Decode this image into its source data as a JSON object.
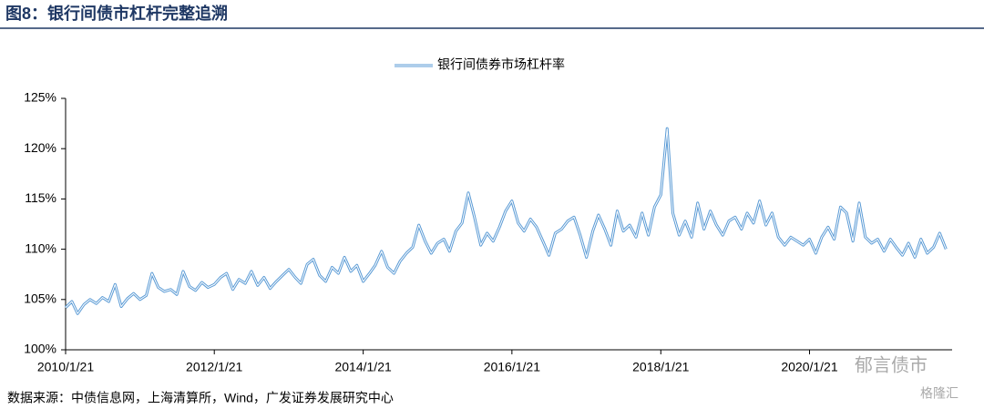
{
  "chart_data": {
    "type": "line",
    "title": "图8：银行间债市杠杆完整追溯",
    "source": "数据来源：中债信息网，上海清算所，Wind，广发证券发展研究中心",
    "watermark": [
      "郁言债市",
      "格隆汇"
    ],
    "x": [
      "2010/1/21",
      "2010/2/21",
      "2010/3/21",
      "2010/4/21",
      "2010/5/21",
      "2010/6/21",
      "2010/7/21",
      "2010/8/21",
      "2010/9/21",
      "2010/10/21",
      "2010/11/21",
      "2010/12/21",
      "2011/1/21",
      "2011/2/21",
      "2011/3/21",
      "2011/4/21",
      "2011/5/21",
      "2011/6/21",
      "2011/7/21",
      "2011/8/21",
      "2011/9/21",
      "2011/10/21",
      "2011/11/21",
      "2011/12/21",
      "2012/1/21",
      "2012/2/21",
      "2012/3/21",
      "2012/4/21",
      "2012/5/21",
      "2012/6/21",
      "2012/7/21",
      "2012/8/21",
      "2012/9/21",
      "2012/10/21",
      "2012/11/21",
      "2012/12/21",
      "2013/1/21",
      "2013/2/21",
      "2013/3/21",
      "2013/4/21",
      "2013/5/21",
      "2013/6/21",
      "2013/7/21",
      "2013/8/21",
      "2013/9/21",
      "2013/10/21",
      "2013/11/21",
      "2013/12/21",
      "2014/1/21",
      "2014/2/21",
      "2014/3/21",
      "2014/4/21",
      "2014/5/21",
      "2014/6/21",
      "2014/7/21",
      "2014/8/21",
      "2014/9/21",
      "2014/10/21",
      "2014/11/21",
      "2014/12/21",
      "2015/1/21",
      "2015/2/21",
      "2015/3/21",
      "2015/4/21",
      "2015/5/21",
      "2015/6/21",
      "2015/7/21",
      "2015/8/21",
      "2015/9/21",
      "2015/10/21",
      "2015/11/21",
      "2015/12/21",
      "2016/1/21",
      "2016/2/21",
      "2016/3/21",
      "2016/4/21",
      "2016/5/21",
      "2016/6/21",
      "2016/7/21",
      "2016/8/21",
      "2016/9/21",
      "2016/10/21",
      "2016/11/21",
      "2016/12/21",
      "2017/1/21",
      "2017/2/21",
      "2017/3/21",
      "2017/4/21",
      "2017/5/21",
      "2017/6/21",
      "2017/7/21",
      "2017/8/21",
      "2017/9/21",
      "2017/10/21",
      "2017/11/21",
      "2017/12/21",
      "2018/1/21",
      "2018/2/21",
      "2018/3/21",
      "2018/4/21",
      "2018/5/21",
      "2018/6/21",
      "2018/7/21",
      "2018/8/21",
      "2018/9/21",
      "2018/10/21",
      "2018/11/21",
      "2018/12/21",
      "2019/1/21",
      "2019/2/21",
      "2019/3/21",
      "2019/4/21",
      "2019/5/21",
      "2019/6/21",
      "2019/7/21",
      "2019/8/21",
      "2019/9/21",
      "2019/10/21",
      "2019/11/21",
      "2019/12/21",
      "2020/1/21",
      "2020/2/21",
      "2020/3/21",
      "2020/4/21",
      "2020/5/21",
      "2020/6/21",
      "2020/7/21",
      "2020/8/21",
      "2020/9/21",
      "2020/10/21",
      "2020/11/21",
      "2020/12/21",
      "2021/1/21",
      "2021/2/21",
      "2021/3/21",
      "2021/4/21",
      "2021/5/21",
      "2021/6/21",
      "2021/7/21",
      "2021/8/21",
      "2021/9/21",
      "2021/10/21",
      "2021/11/21"
    ],
    "series": [
      {
        "name": "银行间债券市场杠杆率",
        "color": "#5b9bd5",
        "values": [
          104.2,
          104.8,
          103.6,
          104.5,
          105.0,
          104.6,
          105.2,
          104.8,
          106.5,
          104.3,
          105.1,
          105.6,
          105.0,
          105.4,
          107.6,
          106.2,
          105.8,
          106.0,
          105.5,
          107.8,
          106.3,
          105.9,
          106.7,
          106.2,
          106.5,
          107.2,
          107.6,
          106.0,
          107.0,
          106.6,
          107.8,
          106.4,
          107.2,
          106.1,
          106.8,
          107.4,
          108.0,
          107.2,
          106.6,
          108.5,
          109.0,
          107.4,
          106.8,
          108.2,
          107.6,
          109.2,
          107.8,
          108.4,
          106.8,
          107.6,
          108.4,
          109.8,
          108.2,
          107.6,
          108.8,
          109.6,
          110.2,
          112.4,
          110.8,
          109.6,
          110.6,
          111.0,
          109.8,
          111.8,
          112.6,
          115.6,
          113.2,
          110.4,
          111.6,
          110.8,
          112.2,
          113.8,
          114.8,
          112.6,
          111.8,
          113.0,
          112.2,
          110.8,
          109.4,
          111.6,
          112.0,
          112.8,
          113.2,
          111.4,
          109.2,
          111.8,
          113.4,
          112.0,
          110.4,
          113.8,
          111.8,
          112.4,
          111.2,
          113.6,
          111.4,
          114.2,
          115.4,
          122.0,
          113.6,
          111.4,
          112.8,
          111.2,
          114.6,
          112.0,
          113.8,
          112.4,
          111.4,
          112.8,
          113.2,
          112.0,
          113.6,
          112.6,
          114.8,
          112.4,
          113.6,
          111.2,
          110.4,
          111.2,
          110.8,
          110.4,
          111.0,
          109.6,
          111.2,
          112.2,
          111.0,
          114.2,
          113.6,
          110.8,
          114.6,
          111.2,
          110.6,
          111.0,
          109.8,
          111.0,
          110.2,
          109.4,
          110.6,
          109.2,
          111.0,
          109.6,
          110.2,
          111.6,
          110.0
        ]
      }
    ],
    "xlim": [
      "2010/1/21",
      "2021/12/21"
    ],
    "xticks": [
      "2010/1/21",
      "2012/1/21",
      "2014/1/21",
      "2016/1/21",
      "2018/1/21",
      "2020/1/21"
    ],
    "ylim": [
      100,
      125
    ],
    "yticks": [
      {
        "value": 100,
        "label": "100%"
      },
      {
        "value": 105,
        "label": "105%"
      },
      {
        "value": 110,
        "label": "110%"
      },
      {
        "value": 115,
        "label": "115%"
      },
      {
        "value": 120,
        "label": "120%"
      },
      {
        "value": 125,
        "label": "125%"
      }
    ],
    "grid": false,
    "legend": "top"
  }
}
